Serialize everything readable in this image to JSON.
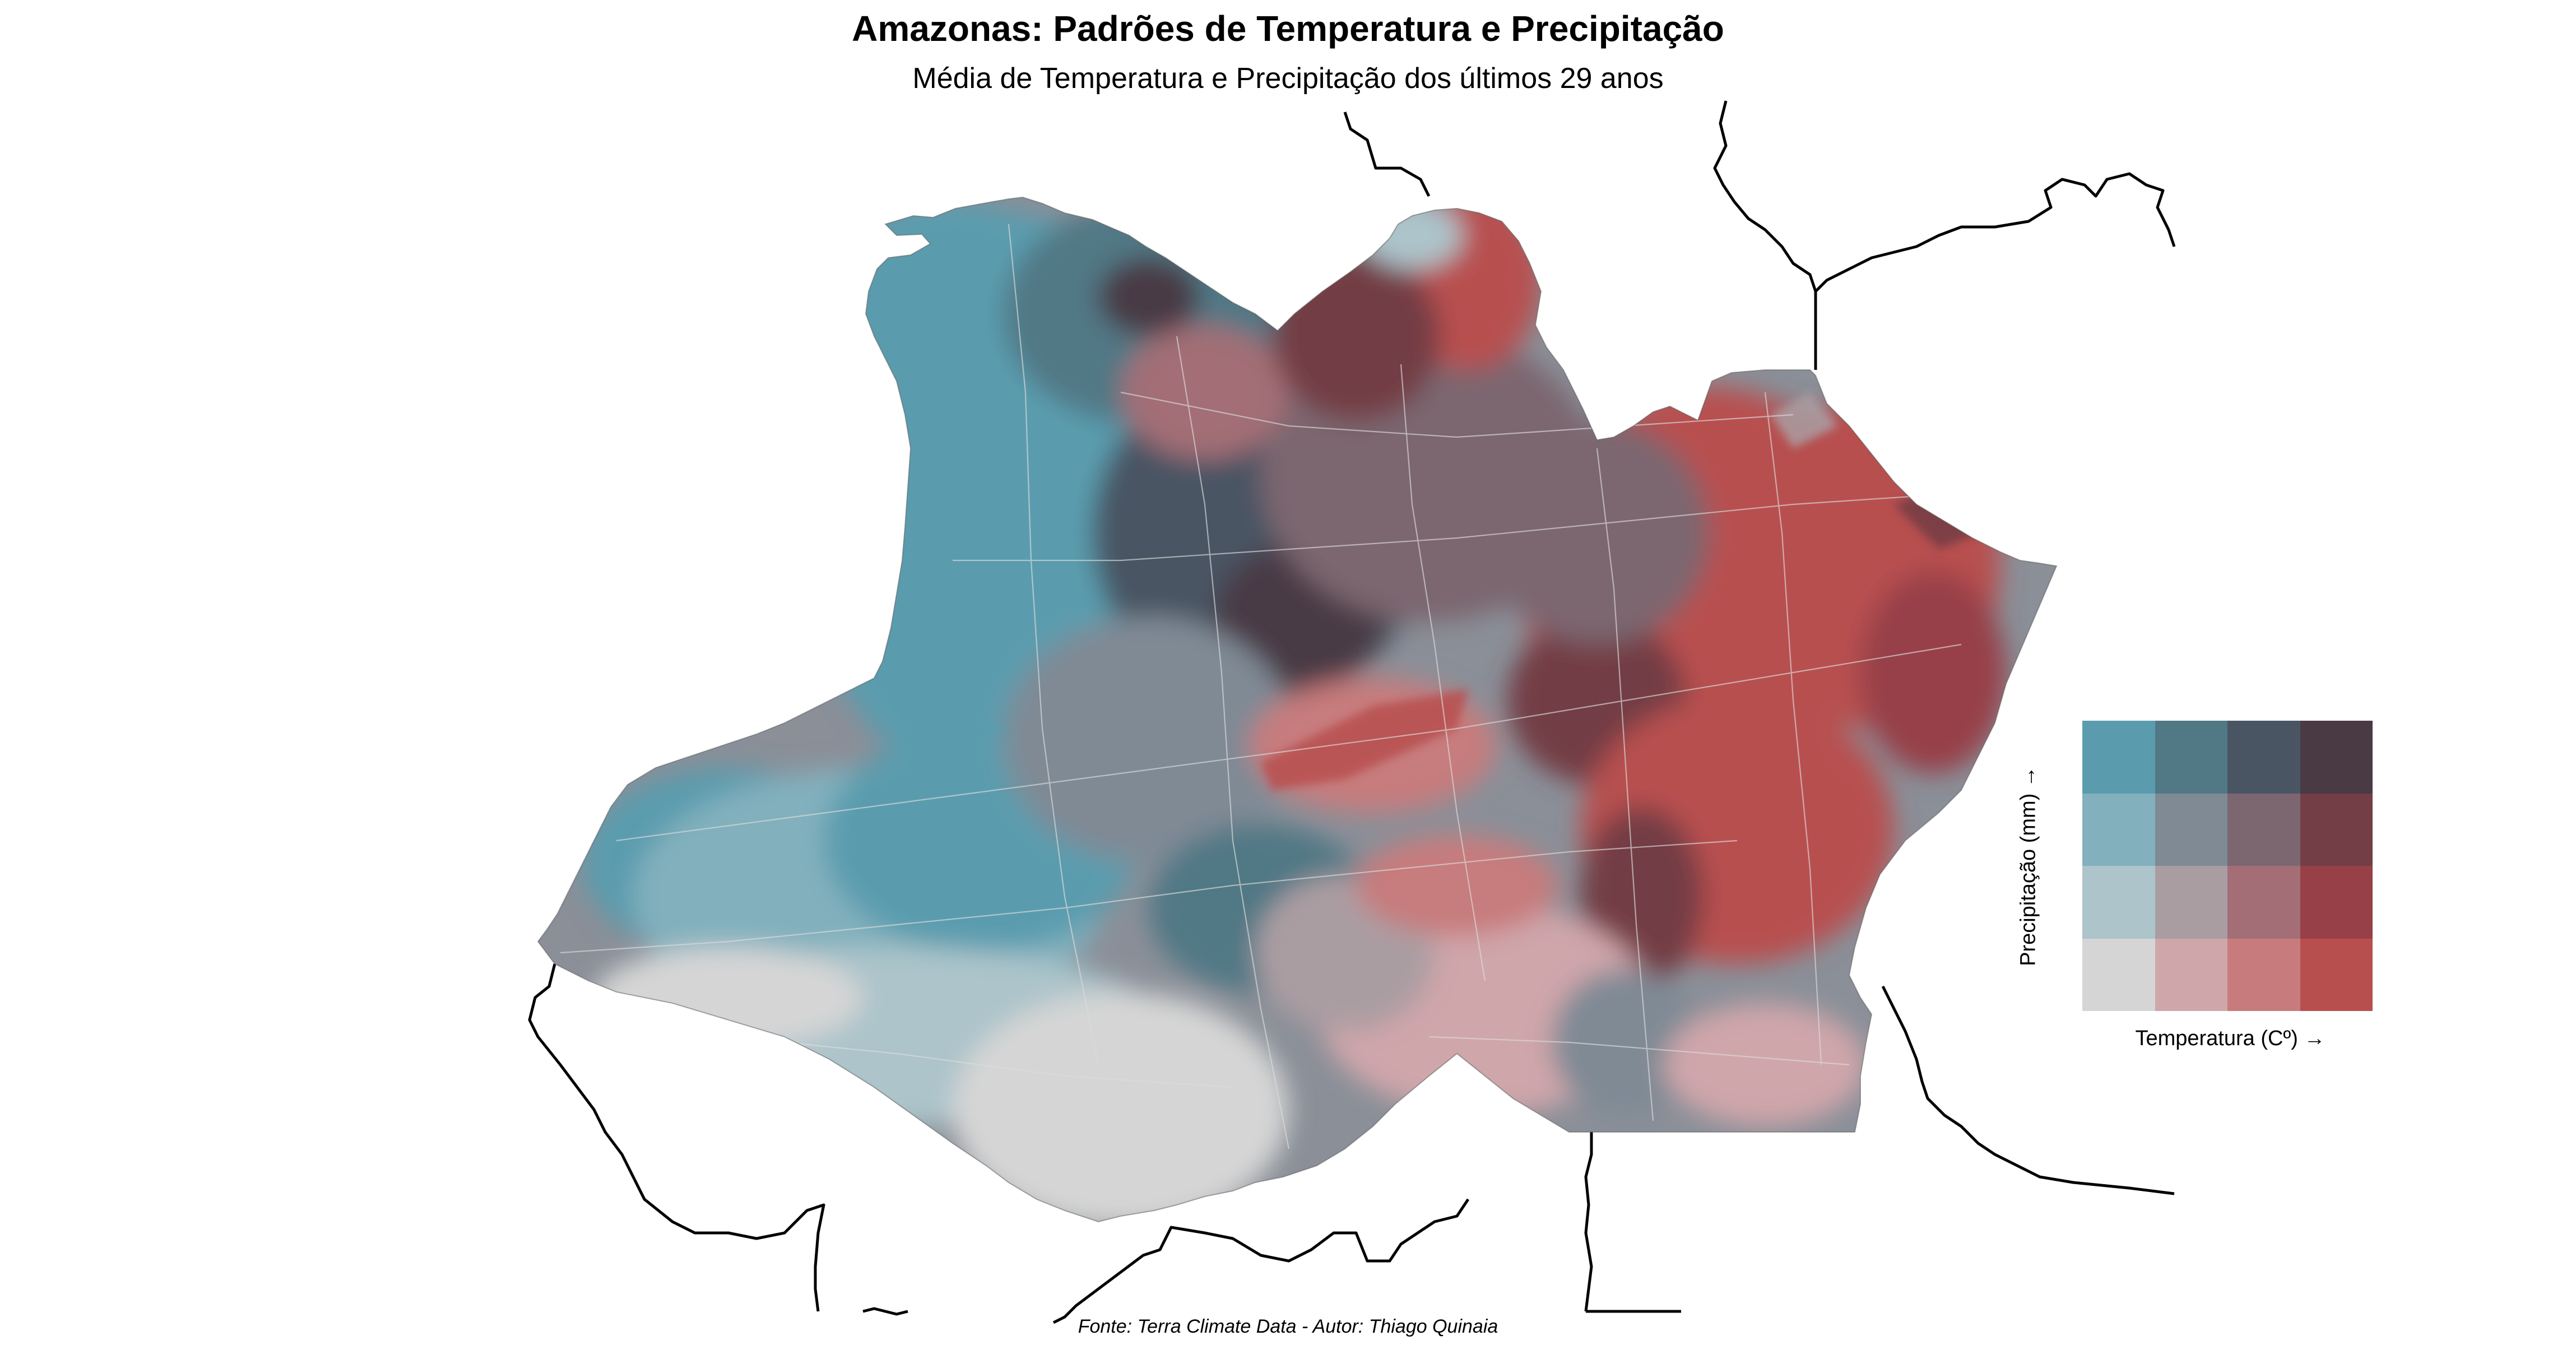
{
  "title": "Amazonas: Padrões de Temperatura e Precipitação",
  "subtitle": "Média de Temperatura e Precipitação dos últimos 29 anos",
  "caption": "Fonte: Terra Climate Data - Autor: Thiago Quinaia",
  "legend": {
    "x_label": "Temperatura (Cº) →",
    "y_label": "Precipitação (mm) →",
    "grid_rows_top_to_bottom": [
      [
        "#5a9cae",
        "#517885",
        "#4a5564",
        "#4a3a44"
      ],
      [
        "#82b0bd",
        "#7f8a95",
        "#7c6670",
        "#733e45"
      ],
      [
        "#acc4ca",
        "#aa9da2",
        "#a36e76",
        "#974048"
      ],
      [
        "#d5d5d5",
        "#cfa6aa",
        "#c77b7d",
        "#b84f4f"
      ]
    ]
  },
  "map": {
    "region": "Amazonas",
    "colors": {
      "boundary": "#000000",
      "internal_boundary": "#dcdcdc"
    }
  }
}
